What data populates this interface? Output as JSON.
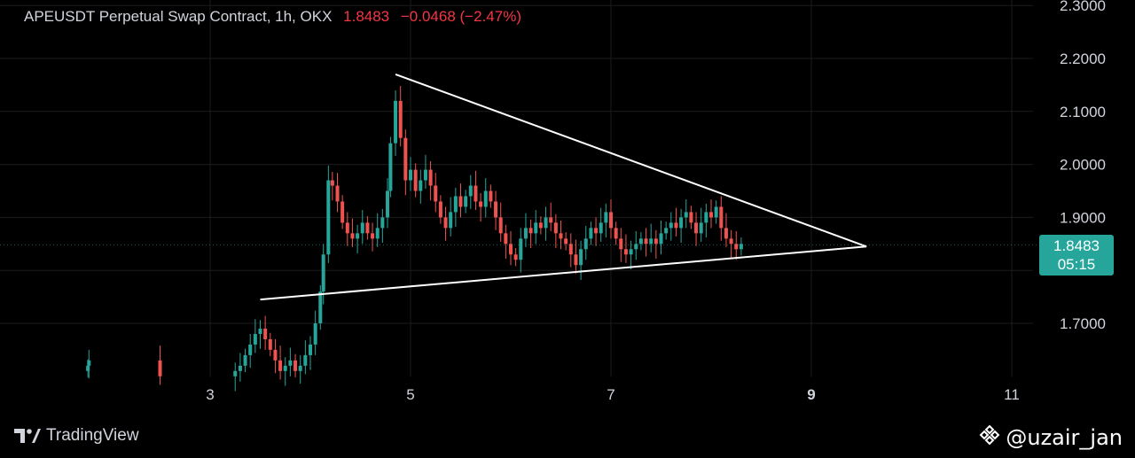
{
  "header": {
    "symbol": "APEUSDT Perpetual Swap Contract, 1h, OKX",
    "last": "1.8483",
    "change": "−0.0468 (−2.47%)"
  },
  "price_tag": {
    "price": "1.8483",
    "countdown": "05:15"
  },
  "footer": {
    "brand": "TradingView",
    "watermark": "@uzair_jan"
  },
  "colors": {
    "up": "#26a69a",
    "down": "#ef5350",
    "background": "#000000",
    "grid": "#1c1c1c",
    "trendline": "#ffffff"
  },
  "icons": {
    "brand_logo": "tradingview-logo-icon",
    "watermark_logo": "binance-logo-icon"
  },
  "chart_data": {
    "type": "candlestick",
    "title": "APEUSDT Perpetual Swap Contract, 1h, OKX",
    "x_ticks": [
      "3",
      "5",
      "7",
      "9",
      "11"
    ],
    "y_ticks": [
      "2.3000",
      "2.2000",
      "2.1000",
      "2.0000",
      "1.9000",
      "1.7000"
    ],
    "ylim": [
      1.6,
      2.3
    ],
    "xlim": [
      1.3,
      11.3
    ],
    "grid": true,
    "last_price": 1.8483,
    "trendlines": [
      {
        "name": "upper",
        "from": [
          4.85,
          2.17
        ],
        "to": [
          9.55,
          1.845
        ]
      },
      {
        "name": "lower",
        "from": [
          3.5,
          1.745
        ],
        "to": [
          9.55,
          1.845
        ]
      }
    ],
    "closes": [
      [
        1.78,
        1.62
      ],
      [
        1.79,
        1.63
      ],
      [
        2.5,
        1.6
      ],
      [
        3.25,
        1.61
      ],
      [
        3.3,
        1.62
      ],
      [
        3.35,
        1.64
      ],
      [
        3.4,
        1.66
      ],
      [
        3.45,
        1.68
      ],
      [
        3.5,
        1.69
      ],
      [
        3.55,
        1.67
      ],
      [
        3.6,
        1.65
      ],
      [
        3.65,
        1.63
      ],
      [
        3.7,
        1.61
      ],
      [
        3.75,
        1.62
      ],
      [
        3.8,
        1.63
      ],
      [
        3.85,
        1.61
      ],
      [
        3.9,
        1.62
      ],
      [
        3.95,
        1.64
      ],
      [
        4.0,
        1.66
      ],
      [
        4.05,
        1.7
      ],
      [
        4.1,
        1.76
      ],
      [
        4.13,
        1.83
      ],
      [
        4.18,
        1.97
      ],
      [
        4.22,
        1.96
      ],
      [
        4.27,
        1.93
      ],
      [
        4.32,
        1.89
      ],
      [
        4.37,
        1.87
      ],
      [
        4.42,
        1.86
      ],
      [
        4.47,
        1.87
      ],
      [
        4.52,
        1.89
      ],
      [
        4.57,
        1.87
      ],
      [
        4.62,
        1.86
      ],
      [
        4.67,
        1.88
      ],
      [
        4.72,
        1.9
      ],
      [
        4.77,
        1.95
      ],
      [
        4.8,
        2.04
      ],
      [
        4.85,
        2.12
      ],
      [
        4.9,
        2.05
      ],
      [
        4.95,
        1.97
      ],
      [
        5.0,
        1.99
      ],
      [
        5.05,
        1.95
      ],
      [
        5.1,
        1.97
      ],
      [
        5.15,
        1.99
      ],
      [
        5.2,
        1.96
      ],
      [
        5.25,
        1.93
      ],
      [
        5.3,
        1.9
      ],
      [
        5.35,
        1.88
      ],
      [
        5.4,
        1.91
      ],
      [
        5.45,
        1.94
      ],
      [
        5.5,
        1.92
      ],
      [
        5.55,
        1.94
      ],
      [
        5.6,
        1.96
      ],
      [
        5.65,
        1.93
      ],
      [
        5.7,
        1.92
      ],
      [
        5.75,
        1.95
      ],
      [
        5.8,
        1.93
      ],
      [
        5.85,
        1.9
      ],
      [
        5.9,
        1.87
      ],
      [
        5.95,
        1.85
      ],
      [
        6.0,
        1.83
      ],
      [
        6.05,
        1.82
      ],
      [
        6.1,
        1.86
      ],
      [
        6.15,
        1.88
      ],
      [
        6.2,
        1.87
      ],
      [
        6.25,
        1.89
      ],
      [
        6.3,
        1.88
      ],
      [
        6.35,
        1.9
      ],
      [
        6.4,
        1.89
      ],
      [
        6.45,
        1.87
      ],
      [
        6.5,
        1.86
      ],
      [
        6.55,
        1.85
      ],
      [
        6.6,
        1.83
      ],
      [
        6.65,
        1.81
      ],
      [
        6.7,
        1.84
      ],
      [
        6.75,
        1.86
      ],
      [
        6.8,
        1.88
      ],
      [
        6.85,
        1.87
      ],
      [
        6.9,
        1.89
      ],
      [
        6.95,
        1.91
      ],
      [
        7.0,
        1.88
      ],
      [
        7.05,
        1.86
      ],
      [
        7.1,
        1.84
      ],
      [
        7.15,
        1.83
      ],
      [
        7.2,
        1.84
      ],
      [
        7.25,
        1.85
      ],
      [
        7.3,
        1.86
      ],
      [
        7.35,
        1.85
      ],
      [
        7.4,
        1.86
      ],
      [
        7.45,
        1.85
      ],
      [
        7.5,
        1.87
      ],
      [
        7.55,
        1.88
      ],
      [
        7.6,
        1.89
      ],
      [
        7.65,
        1.88
      ],
      [
        7.7,
        1.9
      ],
      [
        7.75,
        1.91
      ],
      [
        7.8,
        1.89
      ],
      [
        7.85,
        1.87
      ],
      [
        7.9,
        1.89
      ],
      [
        7.95,
        1.91
      ],
      [
        8.0,
        1.9
      ],
      [
        8.05,
        1.92
      ],
      [
        8.1,
        1.88
      ],
      [
        8.15,
        1.86
      ],
      [
        8.2,
        1.85
      ],
      [
        8.25,
        1.84
      ],
      [
        8.3,
        1.85
      ]
    ]
  }
}
